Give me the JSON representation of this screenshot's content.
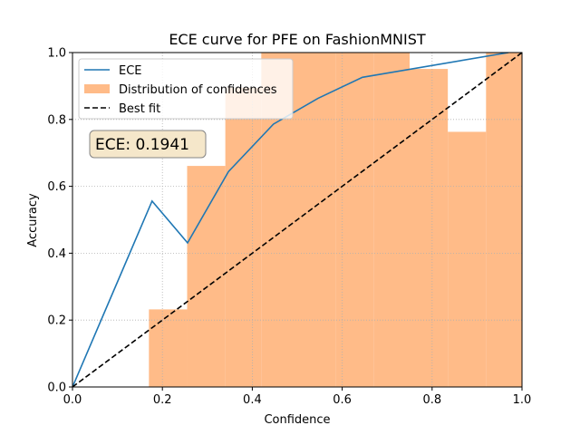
{
  "chart_data": {
    "type": "bar",
    "title": "ECE curve for PFE on FashionMNIST",
    "xlabel": "Confidence",
    "ylabel": "Accuracy",
    "xlim": [
      0,
      1
    ],
    "ylim": [
      0,
      1
    ],
    "xticks": [
      "0.0",
      "0.2",
      "0.4",
      "0.6",
      "0.8",
      "1.0"
    ],
    "yticks": [
      "0.0",
      "0.2",
      "0.4",
      "0.6",
      "0.8",
      "1.0"
    ],
    "grid": true,
    "legend_placement": "top-left",
    "histogram": {
      "name": "Distribution of confidences",
      "color": "#ffbb88",
      "bins": [
        {
          "x0": 0.17,
          "x1": 0.255,
          "height": 0.232
        },
        {
          "x0": 0.255,
          "x1": 0.34,
          "height": 0.661
        },
        {
          "x0": 0.34,
          "x1": 0.42,
          "height": 0.895
        },
        {
          "x0": 0.42,
          "x1": 0.5,
          "height": 1.0
        },
        {
          "x0": 0.5,
          "x1": 0.585,
          "height": 1.0
        },
        {
          "x0": 0.585,
          "x1": 0.67,
          "height": 1.0
        },
        {
          "x0": 0.67,
          "x1": 0.75,
          "height": 1.0
        },
        {
          "x0": 0.75,
          "x1": 0.835,
          "height": 0.951
        },
        {
          "x0": 0.835,
          "x1": 0.92,
          "height": 0.763
        },
        {
          "x0": 0.92,
          "x1": 1.0,
          "height": 1.0
        }
      ]
    },
    "series": [
      {
        "name": "ECE",
        "color": "#1f77b4",
        "x": [
          0.0,
          0.177,
          0.256,
          0.347,
          0.447,
          0.546,
          0.645,
          0.97
        ],
        "y": [
          0.0,
          0.556,
          0.431,
          0.644,
          0.786,
          0.863,
          0.926,
          1.0
        ]
      },
      {
        "name": "Best fit",
        "color": "#000000",
        "style": "dashed",
        "x": [
          0,
          1
        ],
        "y": [
          0,
          1
        ]
      }
    ],
    "annotation": "ECE: 0.1941"
  }
}
